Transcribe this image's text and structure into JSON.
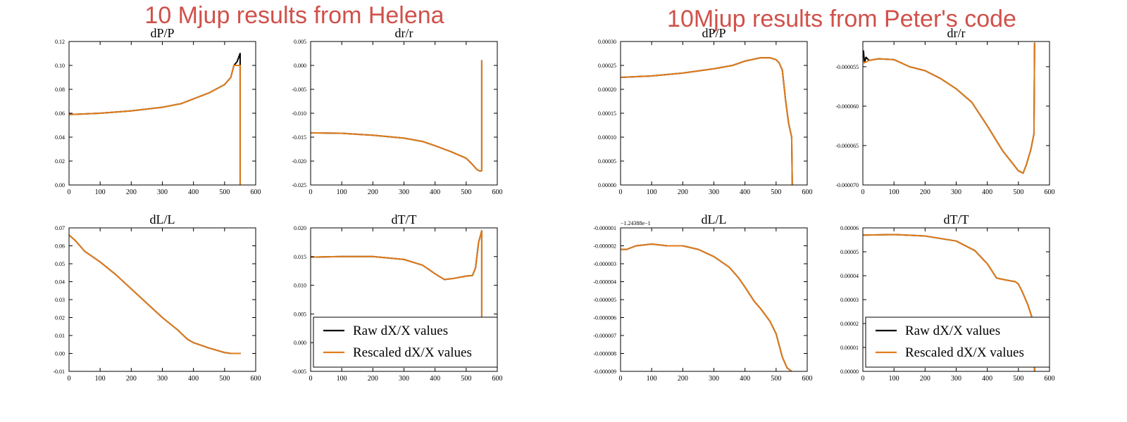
{
  "panel_titles": [
    "10 Mjup results from Helena",
    "10Mjup results from Peter's code"
  ],
  "legend": {
    "raw": "Raw dX/X values",
    "rescaled": "Rescaled dX/X values"
  },
  "colors": {
    "raw": "#000000",
    "rescaled": "#e07c1c",
    "title": "#d0514a"
  },
  "chart_data": [
    {
      "type": "line",
      "title": "dP/P",
      "xlim": [
        0,
        600
      ],
      "ylim": [
        0.0,
        0.12
      ],
      "xticks": [
        0,
        100,
        200,
        300,
        400,
        500,
        600
      ],
      "xtick_labels": [
        "0",
        "100",
        "200",
        "300",
        "400",
        "500",
        "600"
      ],
      "yticks": [
        0.0,
        0.02,
        0.04,
        0.06,
        0.08,
        0.1,
        0.12
      ],
      "ytick_labels": [
        "0.00",
        "0.02",
        "0.04",
        "0.06",
        "0.08",
        "0.10",
        "0.12"
      ],
      "series": [
        {
          "name": "Raw dX/X values",
          "x": [
            0,
            5,
            100,
            200,
            300,
            360,
            400,
            450,
            500,
            520,
            530,
            540,
            550,
            550
          ],
          "y": [
            0.06,
            0.059,
            0.06,
            0.062,
            0.065,
            0.068,
            0.072,
            0.077,
            0.084,
            0.09,
            0.1,
            0.103,
            0.11,
            0.0
          ]
        },
        {
          "name": "Rescaled dX/X values",
          "x": [
            0,
            5,
            100,
            200,
            300,
            360,
            400,
            450,
            500,
            520,
            530,
            545,
            550,
            550
          ],
          "y": [
            0.059,
            0.059,
            0.06,
            0.062,
            0.065,
            0.068,
            0.072,
            0.077,
            0.084,
            0.09,
            0.1,
            0.1,
            0.1,
            0.0
          ]
        }
      ]
    },
    {
      "type": "line",
      "title": "dr/r",
      "xlim": [
        0,
        600
      ],
      "ylim": [
        -0.025,
        0.005
      ],
      "xticks": [
        0,
        100,
        200,
        300,
        400,
        500,
        600
      ],
      "xtick_labels": [
        "0",
        "100",
        "200",
        "300",
        "400",
        "500",
        "600"
      ],
      "yticks": [
        -0.025,
        -0.02,
        -0.015,
        -0.01,
        -0.005,
        0.0,
        0.005
      ],
      "ytick_labels": [
        "-0.025",
        "-0.020",
        "-0.015",
        "-0.010",
        "-0.005",
        "0.000",
        "0.005"
      ],
      "series": [
        {
          "name": "Raw dX/X values",
          "x": [
            0,
            100,
            200,
            300,
            360,
            400,
            450,
            500,
            520,
            535,
            545,
            550,
            550
          ],
          "y": [
            -0.0141,
            -0.0142,
            -0.0146,
            -0.0152,
            -0.0159,
            -0.0168,
            -0.018,
            -0.0194,
            -0.0207,
            -0.0218,
            -0.0221,
            -0.022,
            0.001
          ]
        },
        {
          "name": "Rescaled dX/X values",
          "x": [
            0,
            100,
            200,
            300,
            360,
            400,
            450,
            500,
            520,
            535,
            545,
            550,
            550
          ],
          "y": [
            -0.0141,
            -0.0142,
            -0.0146,
            -0.0152,
            -0.0159,
            -0.0168,
            -0.018,
            -0.0194,
            -0.0207,
            -0.0218,
            -0.0221,
            -0.022,
            0.001
          ]
        }
      ]
    },
    {
      "type": "line",
      "title": "dL/L",
      "xlim": [
        0,
        600
      ],
      "ylim": [
        -0.01,
        0.07
      ],
      "xticks": [
        0,
        100,
        200,
        300,
        400,
        500,
        600
      ],
      "xtick_labels": [
        "0",
        "100",
        "200",
        "300",
        "400",
        "500",
        "600"
      ],
      "yticks": [
        -0.01,
        0.0,
        0.01,
        0.02,
        0.03,
        0.04,
        0.05,
        0.06,
        0.07
      ],
      "ytick_labels": [
        "-0.01",
        "0.00",
        "0.01",
        "0.02",
        "0.03",
        "0.04",
        "0.05",
        "0.06",
        "0.07"
      ],
      "series": [
        {
          "name": "Raw dX/X values",
          "x": [
            0,
            20,
            50,
            100,
            150,
            200,
            250,
            300,
            350,
            380,
            400,
            450,
            500,
            520,
            550
          ],
          "y": [
            0.066,
            0.063,
            0.057,
            0.051,
            0.044,
            0.036,
            0.028,
            0.02,
            0.013,
            0.008,
            0.006,
            0.003,
            0.0005,
            0.0,
            0.0
          ]
        },
        {
          "name": "Rescaled dX/X values",
          "x": [
            0,
            20,
            50,
            100,
            150,
            200,
            250,
            300,
            350,
            380,
            400,
            450,
            500,
            520,
            550
          ],
          "y": [
            0.066,
            0.063,
            0.057,
            0.051,
            0.044,
            0.036,
            0.028,
            0.02,
            0.013,
            0.008,
            0.006,
            0.003,
            0.0005,
            0.0,
            0.0
          ]
        }
      ]
    },
    {
      "type": "line",
      "title": "dT/T",
      "xlim": [
        0,
        600
      ],
      "ylim": [
        -0.005,
        0.02
      ],
      "xticks": [
        0,
        100,
        200,
        300,
        400,
        500,
        600
      ],
      "xtick_labels": [
        "0",
        "100",
        "200",
        "300",
        "400",
        "500",
        "600"
      ],
      "yticks": [
        -0.005,
        0.0,
        0.005,
        0.01,
        0.015,
        0.02
      ],
      "ytick_labels": [
        "-0.005",
        "0.000",
        "0.005",
        "0.010",
        "0.015",
        "0.020"
      ],
      "legend": "lower-right",
      "series": [
        {
          "name": "Raw dX/X values",
          "x": [
            0,
            100,
            200,
            300,
            360,
            400,
            430,
            460,
            490,
            500,
            520,
            530,
            540,
            550,
            550
          ],
          "y": [
            0.0149,
            0.015,
            0.015,
            0.0145,
            0.0135,
            0.012,
            0.011,
            0.0112,
            0.0115,
            0.0116,
            0.0117,
            0.013,
            0.0175,
            0.0195,
            0.0
          ]
        },
        {
          "name": "Rescaled dX/X values",
          "x": [
            0,
            100,
            200,
            300,
            360,
            400,
            430,
            460,
            490,
            500,
            520,
            530,
            540,
            550,
            550
          ],
          "y": [
            0.0149,
            0.015,
            0.015,
            0.0145,
            0.0135,
            0.012,
            0.011,
            0.0112,
            0.0115,
            0.0116,
            0.0117,
            0.013,
            0.0175,
            0.0195,
            0.0
          ]
        }
      ]
    },
    {
      "type": "line",
      "title": "dP/P",
      "xlim": [
        0,
        600
      ],
      "ylim": [
        0.0,
        0.0003
      ],
      "xticks": [
        0,
        100,
        200,
        300,
        400,
        500,
        600
      ],
      "xtick_labels": [
        "0",
        "100",
        "200",
        "300",
        "400",
        "500",
        "600"
      ],
      "yticks": [
        0.0,
        5e-05,
        0.0001,
        0.00015,
        0.0002,
        0.00025,
        0.0003
      ],
      "ytick_labels": [
        "0.00000",
        "0.00005",
        "0.00010",
        "0.00015",
        "0.00020",
        "0.00025",
        "0.00030"
      ],
      "series": [
        {
          "name": "Raw dX/X values",
          "x": [
            0,
            100,
            200,
            300,
            360,
            400,
            450,
            480,
            500,
            510,
            520,
            530,
            540,
            550,
            552
          ],
          "y": [
            0.000225,
            0.000228,
            0.000234,
            0.000243,
            0.00025,
            0.000259,
            0.000266,
            0.000266,
            0.000262,
            0.000255,
            0.00024,
            0.00018,
            0.00013,
            0.0001,
            0.0
          ]
        },
        {
          "name": "Rescaled dX/X values",
          "x": [
            0,
            100,
            200,
            300,
            360,
            400,
            450,
            480,
            500,
            510,
            520,
            530,
            540,
            550,
            552
          ],
          "y": [
            0.000225,
            0.000228,
            0.000234,
            0.000243,
            0.00025,
            0.000259,
            0.000266,
            0.000266,
            0.000262,
            0.000255,
            0.00024,
            0.00018,
            0.00013,
            0.0001,
            0.0
          ]
        }
      ]
    },
    {
      "type": "line",
      "title": "dr/r",
      "xlim": [
        0,
        600
      ],
      "ylim": [
        -7e-05,
        -5.18e-05
      ],
      "xticks": [
        0,
        100,
        200,
        300,
        400,
        500,
        600
      ],
      "xtick_labels": [
        "0",
        "100",
        "200",
        "300",
        "400",
        "500",
        "600"
      ],
      "yticks": [
        -7e-05,
        -6.5e-05,
        -6e-05,
        -5.5e-05
      ],
      "ytick_labels": [
        "-0.000070",
        "-0.000065",
        "-0.000060",
        "-0.000055"
      ],
      "series": [
        {
          "name": "Raw dX/X values",
          "x": [
            0,
            2,
            5,
            10,
            20,
            50,
            100,
            150,
            200,
            250,
            300,
            350,
            400,
            450,
            500,
            515,
            525,
            540,
            550,
            552
          ],
          "y": [
            -5.35e-05,
            -5.3e-05,
            -5.45e-05,
            -5.38e-05,
            -5.42e-05,
            -5.4e-05,
            -5.41e-05,
            -5.5e-05,
            -5.55e-05,
            -5.65e-05,
            -5.78e-05,
            -5.95e-05,
            -6.25e-05,
            -6.57e-05,
            -6.82e-05,
            -6.85e-05,
            -6.75e-05,
            -6.55e-05,
            -6.35e-05,
            -5.2e-05
          ]
        },
        {
          "name": "Rescaled dX/X values",
          "x": [
            0,
            5,
            20,
            50,
            100,
            150,
            200,
            250,
            300,
            350,
            400,
            450,
            500,
            515,
            525,
            540,
            550,
            552
          ],
          "y": [
            -5.42e-05,
            -5.45e-05,
            -5.42e-05,
            -5.4e-05,
            -5.41e-05,
            -5.5e-05,
            -5.55e-05,
            -5.65e-05,
            -5.78e-05,
            -5.95e-05,
            -6.25e-05,
            -6.57e-05,
            -6.82e-05,
            -6.85e-05,
            -6.75e-05,
            -6.55e-05,
            -6.35e-05,
            -5.2e-05
          ]
        }
      ]
    },
    {
      "type": "line",
      "title": "dL/L",
      "xlim": [
        0,
        600
      ],
      "ylim": [
        -9e-06,
        -1e-06
      ],
      "offset_label": "−1.24388e−1",
      "xticks": [
        0,
        100,
        200,
        300,
        400,
        500,
        600
      ],
      "xtick_labels": [
        "0",
        "100",
        "200",
        "300",
        "400",
        "500",
        "600"
      ],
      "yticks": [
        -9e-06,
        -8e-06,
        -7e-06,
        -6e-06,
        -5e-06,
        -4e-06,
        -3e-06,
        -2e-06,
        -1e-06
      ],
      "ytick_labels": [
        "-0.000009",
        "-0.000008",
        "-0.000007",
        "-0.000006",
        "-0.000005",
        "-0.000004",
        "-0.000003",
        "-0.000002",
        "-0.000001"
      ],
      "series": [
        {
          "name": "Raw dX/X values",
          "x": [
            0,
            20,
            50,
            100,
            150,
            200,
            250,
            300,
            350,
            380,
            400,
            430,
            450,
            480,
            500,
            520,
            535,
            550
          ],
          "y": [
            -2.2e-06,
            -2.2e-06,
            -2e-06,
            -1.9e-06,
            -2e-06,
            -2e-06,
            -2.2e-06,
            -2.6e-06,
            -3.2e-06,
            -3.8e-06,
            -4.3e-06,
            -5.1e-06,
            -5.5e-06,
            -6.2e-06,
            -6.9e-06,
            -8.2e-06,
            -8.8e-06,
            -9e-06
          ]
        },
        {
          "name": "Rescaled dX/X values",
          "x": [
            0,
            20,
            50,
            100,
            150,
            200,
            250,
            300,
            350,
            380,
            400,
            430,
            450,
            480,
            500,
            520,
            535,
            550
          ],
          "y": [
            -2.2e-06,
            -2.2e-06,
            -2e-06,
            -1.9e-06,
            -2e-06,
            -2e-06,
            -2.2e-06,
            -2.6e-06,
            -3.2e-06,
            -3.8e-06,
            -4.3e-06,
            -5.1e-06,
            -5.5e-06,
            -6.2e-06,
            -6.9e-06,
            -8.2e-06,
            -8.8e-06,
            -9e-06
          ]
        }
      ]
    },
    {
      "type": "line",
      "title": "dT/T",
      "xlim": [
        0,
        600
      ],
      "ylim": [
        0.0,
        6e-05
      ],
      "xticks": [
        0,
        100,
        200,
        300,
        400,
        500,
        600
      ],
      "xtick_labels": [
        "0",
        "100",
        "200",
        "300",
        "400",
        "500",
        "600"
      ],
      "yticks": [
        0.0,
        1e-05,
        2e-05,
        3e-05,
        4e-05,
        5e-05,
        6e-05
      ],
      "ytick_labels": [
        "0.00000",
        "0.00001",
        "0.00002",
        "0.00003",
        "0.00004",
        "0.00005",
        "0.00006"
      ],
      "legend": "lower-right",
      "series": [
        {
          "name": "Raw dX/X values",
          "x": [
            0,
            100,
            200,
            300,
            360,
            400,
            430,
            460,
            490,
            500,
            510,
            530,
            540,
            550,
            552
          ],
          "y": [
            5.7e-05,
            5.72e-05,
            5.66e-05,
            5.45e-05,
            5.05e-05,
            4.5e-05,
            3.9e-05,
            3.82e-05,
            3.75e-05,
            3.65e-05,
            3.4e-05,
            2.8e-05,
            2.4e-05,
            2e-05,
            0.0
          ]
        },
        {
          "name": "Rescaled dX/X values",
          "x": [
            0,
            100,
            200,
            300,
            360,
            400,
            430,
            460,
            490,
            500,
            510,
            530,
            540,
            550,
            552
          ],
          "y": [
            5.7e-05,
            5.72e-05,
            5.66e-05,
            5.45e-05,
            5.05e-05,
            4.5e-05,
            3.9e-05,
            3.82e-05,
            3.75e-05,
            3.65e-05,
            3.4e-05,
            2.8e-05,
            2.4e-05,
            2e-05,
            0.0
          ]
        }
      ]
    }
  ]
}
